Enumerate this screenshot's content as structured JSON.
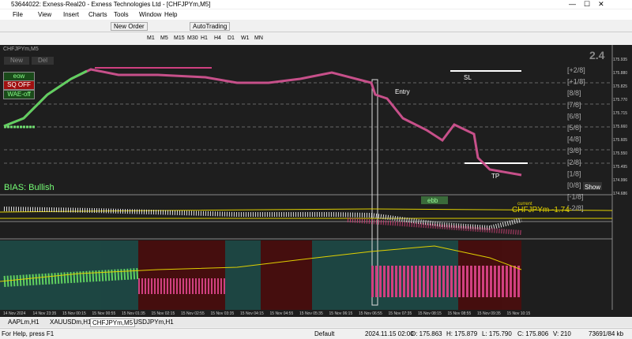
{
  "window": {
    "title": "53644022: Exness-Real20 - Exness Technologies Ltd - [CHFJPYm,M5]"
  },
  "menu": [
    "File",
    "View",
    "Insert",
    "Charts",
    "Tools",
    "Window",
    "Help"
  ],
  "toolbar": {
    "new_order": "New Order",
    "autotrading": "AutoTrading",
    "timeframes": [
      "M1",
      "M5",
      "M15",
      "M30",
      "H1",
      "H4",
      "D1",
      "W1",
      "MN"
    ]
  },
  "chart": {
    "symbol": "CHFJPYm,M5",
    "buttons": [
      "New",
      "Del"
    ],
    "panel": [
      "eow",
      "SQ OFF",
      "WAE-off"
    ],
    "bias": "BIAS: Bullish",
    "sl": "SL",
    "entry": "Entry",
    "tp": "TP",
    "show": "Show",
    "spread": "2.4",
    "levels": [
      "[+2/8]",
      "[+1/8]",
      "[8/8]",
      "[7/8]",
      "[6/8]",
      "[5/8]",
      "[4/8]",
      "[3/8]",
      "[2/8]",
      "[1/8]",
      "[0/8]",
      "[-1/8]",
      "[-2/8]"
    ],
    "ebb": "ebb",
    "current": "current",
    "current_value": "CHFJPYm -1.74",
    "price_ticks": [
      "175.935",
      "175.880",
      "175.825",
      "175.770",
      "175.715",
      "175.660",
      "175.605",
      "175.550",
      "175.495",
      "174.996",
      "174.686"
    ],
    "time_ticks": [
      "14 Nov 2024",
      "14 Nov 23:35",
      "15 Nov 00:15",
      "15 Nov 00:55",
      "15 Nov 01:35",
      "15 Nov 02:15",
      "15 Nov 02:55",
      "15 Nov 03:35",
      "15 Nov 04:15",
      "15 Nov 04:55",
      "15 Nov 05:35",
      "15 Nov 06:15",
      "15 Nov 06:55",
      "15 Nov 07:35",
      "15 Nov 08:15",
      "15 Nov 08:55",
      "15 Nov 09:35",
      "15 Nov 10:15"
    ]
  },
  "tabs": [
    "AAPLm,H1",
    "XAUUSDm,H1",
    "CHFJPYm,M5",
    "USDJPYm,H1"
  ],
  "status": {
    "help": "For Help, press F1",
    "profile": "Default",
    "time": "2024.11.15 02:00",
    "open": "O: 175.863",
    "high": "H: 175.879",
    "low": "L: 175.790",
    "close": "C: 175.806",
    "volume": "V: 210",
    "traffic": "73691/84 kb"
  }
}
